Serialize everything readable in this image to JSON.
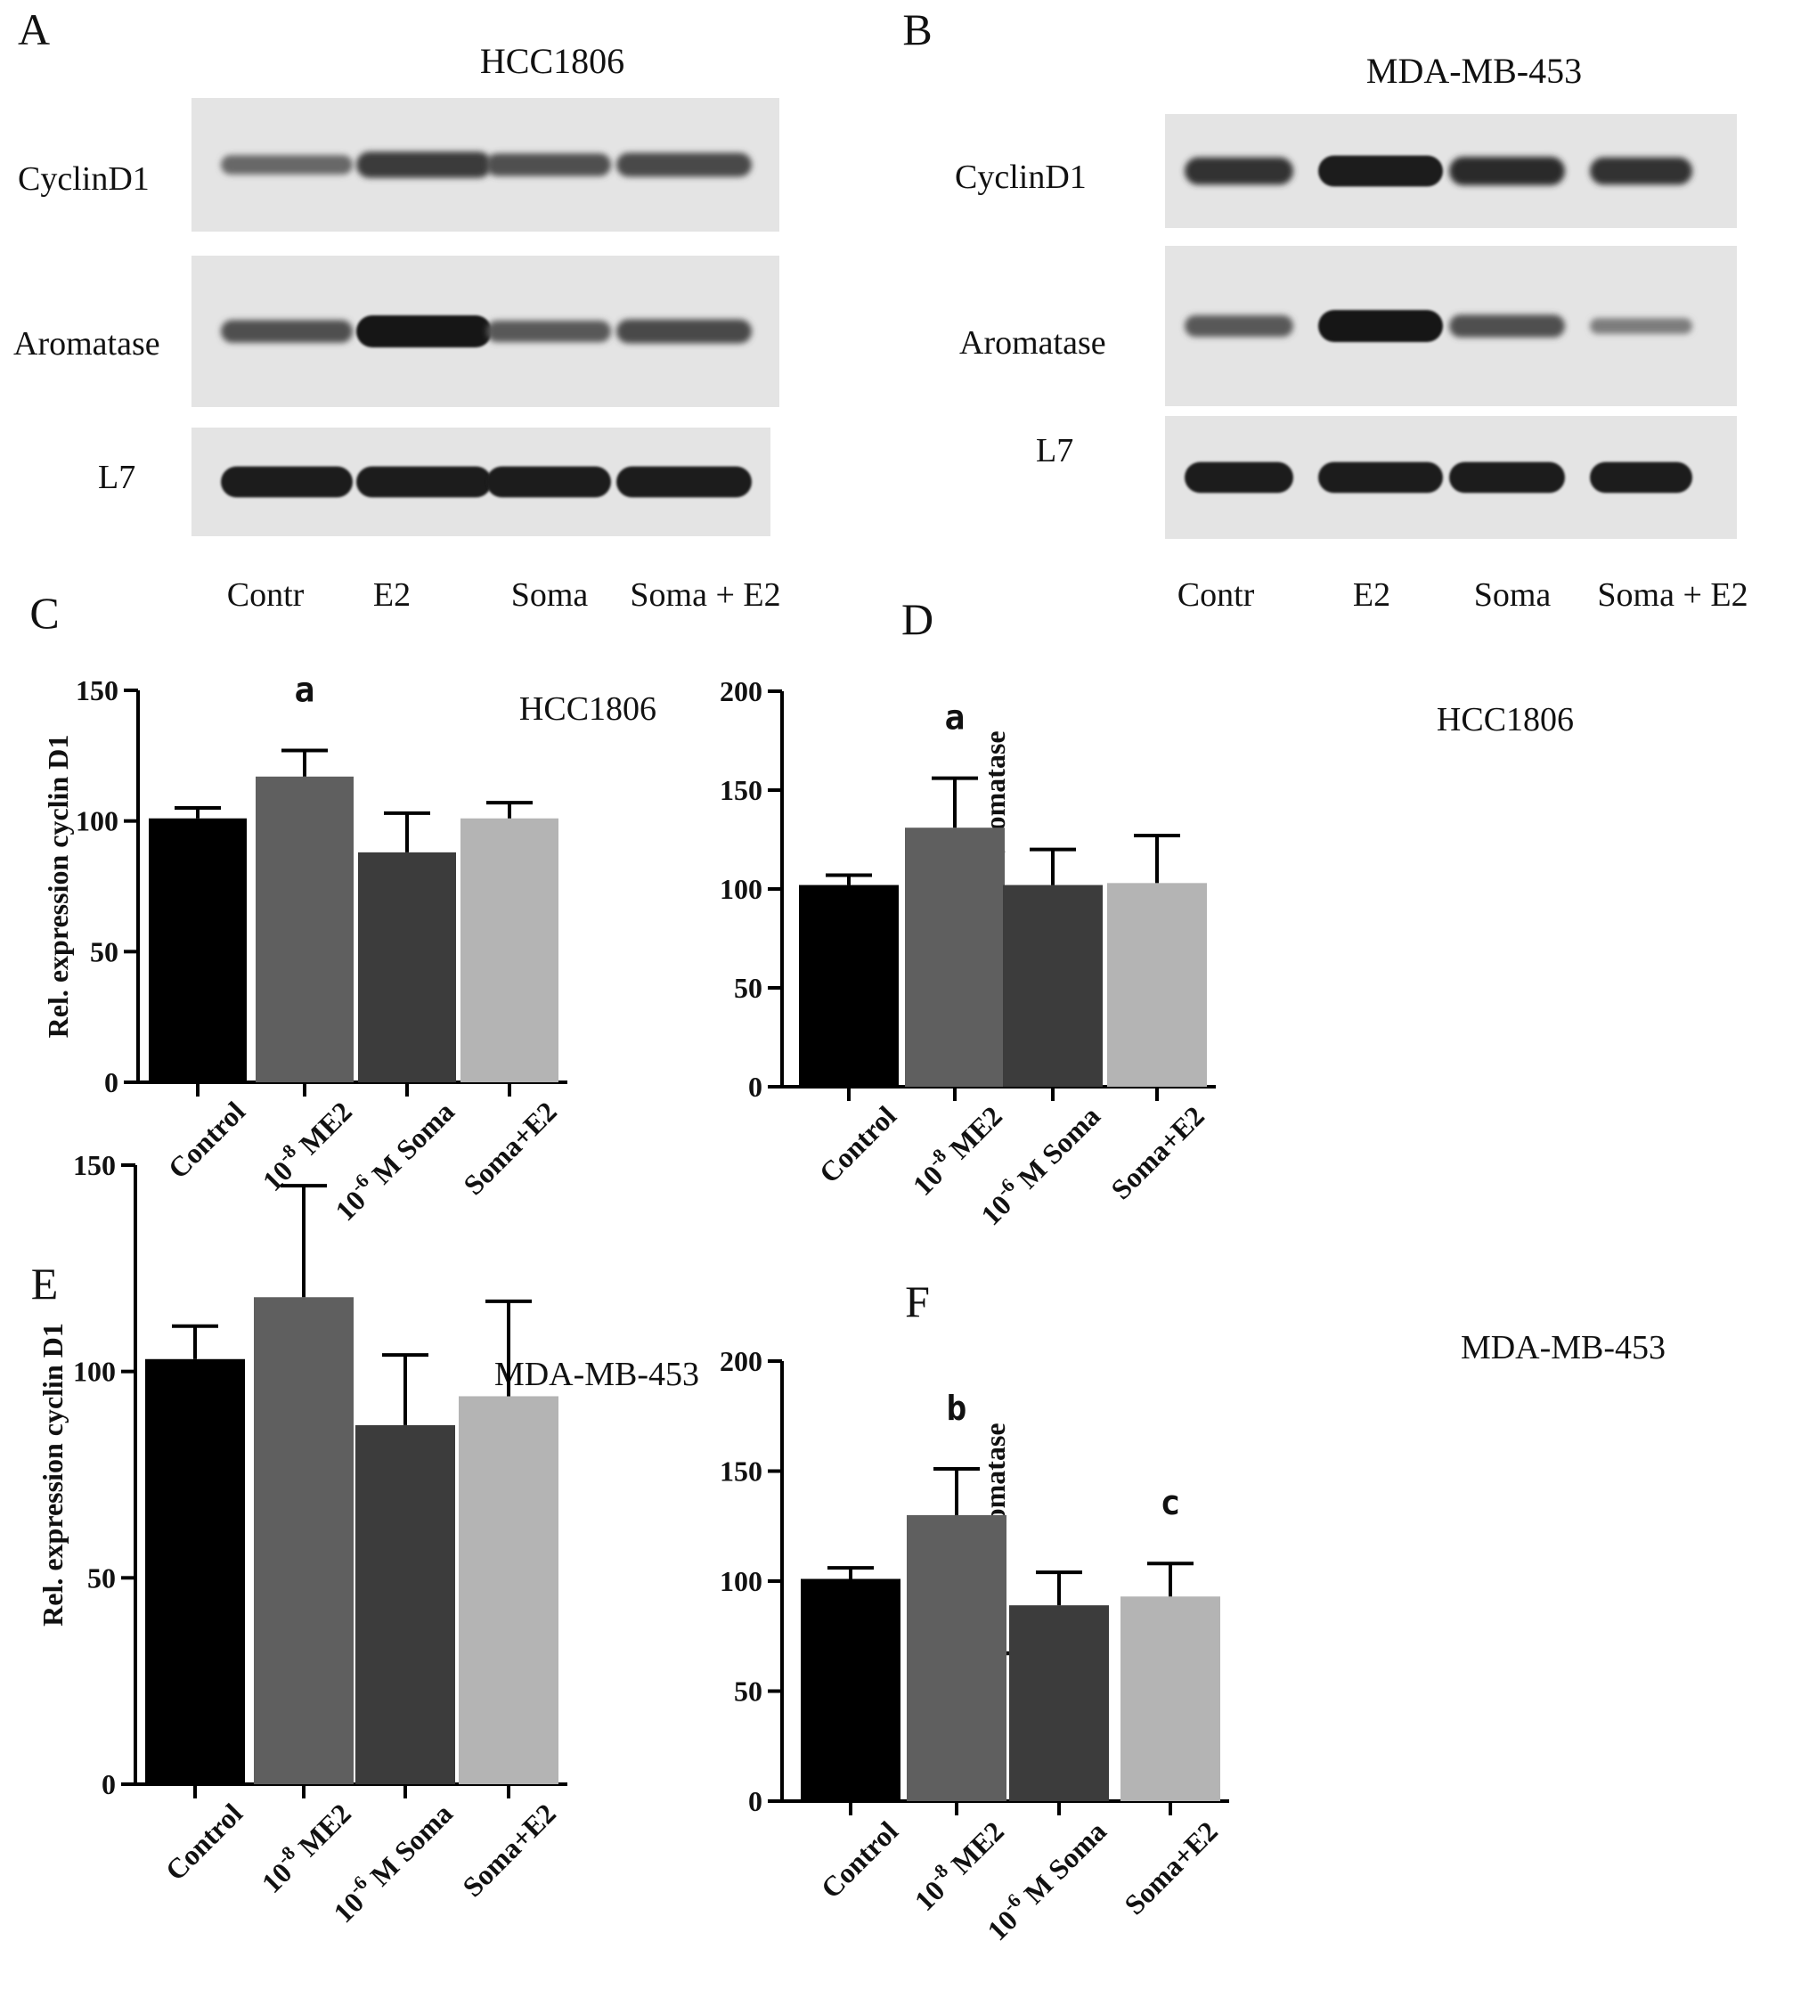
{
  "blots": [
    {
      "panel": "A",
      "title": "HCC1806",
      "rows": [
        {
          "label": "CyclinD1",
          "intensity": [
            0.45,
            0.75,
            0.6,
            0.65
          ]
        },
        {
          "label": "Aromatase",
          "intensity": [
            0.6,
            1.0,
            0.55,
            0.65
          ]
        },
        {
          "label": "L7",
          "intensity": [
            0.95,
            0.95,
            0.95,
            0.95
          ]
        }
      ],
      "lanes": [
        "Contr",
        "E2",
        "Soma",
        "Soma + E2"
      ]
    },
    {
      "panel": "B",
      "title": "MDA-MB-453",
      "rows": [
        {
          "label": "CyclinD1",
          "intensity": [
            0.8,
            0.95,
            0.85,
            0.8
          ]
        },
        {
          "label": "Aromatase",
          "intensity": [
            0.55,
            1.0,
            0.6,
            0.3
          ]
        },
        {
          "label": "L7",
          "intensity": [
            0.95,
            0.95,
            0.95,
            0.95
          ]
        }
      ],
      "lanes": [
        "Contr",
        "E2",
        "Soma",
        "Soma + E2"
      ]
    }
  ],
  "chart_data": [
    {
      "panel": "C",
      "type": "bar",
      "title": "HCC1806",
      "ylabel": "Rel. expression cyclin D1",
      "categories": [
        "Control",
        "10",
        "10",
        "Soma+E2"
      ],
      "category_superscripts": [
        "",
        "-8",
        "-6",
        ""
      ],
      "category_suffixes": [
        "",
        " ME2",
        " M Soma",
        ""
      ],
      "values": [
        101,
        117,
        88,
        101
      ],
      "errors": [
        4,
        10,
        15,
        6
      ],
      "colors": [
        "#000000",
        "#5f5f5f",
        "#3c3c3c",
        "#b4b4b4"
      ],
      "ylim": [
        0,
        150
      ],
      "yticks": [
        0,
        50,
        100,
        150
      ],
      "annotations": [
        {
          "index": 1,
          "text": "a"
        }
      ]
    },
    {
      "panel": "D",
      "type": "bar",
      "title": "HCC1806",
      "ylabel": "Rel. expression aromatase",
      "categories": [
        "Control",
        "10",
        "10",
        "Soma+E2"
      ],
      "category_superscripts": [
        "",
        "-8",
        "-6",
        ""
      ],
      "category_suffixes": [
        "",
        " ME2",
        " M Soma",
        ""
      ],
      "values": [
        102,
        131,
        102,
        103
      ],
      "errors": [
        5,
        25,
        18,
        24
      ],
      "colors": [
        "#000000",
        "#5f5f5f",
        "#3c3c3c",
        "#b4b4b4"
      ],
      "ylim": [
        0,
        200
      ],
      "yticks": [
        0,
        50,
        100,
        150,
        200
      ],
      "annotations": [
        {
          "index": 1,
          "text": "a"
        }
      ]
    },
    {
      "panel": "E",
      "type": "bar",
      "title": "MDA-MB-453",
      "ylabel": "Rel. expression cyclin D1",
      "categories": [
        "Control",
        "10",
        "10",
        "Soma+E2"
      ],
      "category_superscripts": [
        "",
        "-8",
        "-6",
        ""
      ],
      "category_suffixes": [
        "",
        " ME2",
        " M Soma",
        ""
      ],
      "values": [
        103,
        118,
        87,
        94
      ],
      "errors": [
        8,
        27,
        17,
        23
      ],
      "colors": [
        "#000000",
        "#5f5f5f",
        "#3c3c3c",
        "#b4b4b4"
      ],
      "ylim": [
        0,
        150
      ],
      "yticks": [
        0,
        50,
        100,
        150
      ],
      "annotations": []
    },
    {
      "panel": "F",
      "type": "bar",
      "title": "MDA-MB-453",
      "ylabel": "Rel. expression aromatase",
      "categories": [
        "Control",
        "10",
        "10",
        "Soma+E2"
      ],
      "category_superscripts": [
        "",
        "-8",
        "-6",
        ""
      ],
      "category_suffixes": [
        "",
        " ME2",
        " M Soma",
        ""
      ],
      "values": [
        101,
        130,
        89,
        93
      ],
      "errors": [
        5,
        21,
        15,
        15
      ],
      "colors": [
        "#000000",
        "#5f5f5f",
        "#3c3c3c",
        "#b4b4b4"
      ],
      "ylim": [
        0,
        200
      ],
      "yticks": [
        0,
        50,
        100,
        150,
        200
      ],
      "annotations": [
        {
          "index": 1,
          "text": "b"
        },
        {
          "index": 3,
          "text": "c"
        }
      ]
    }
  ]
}
